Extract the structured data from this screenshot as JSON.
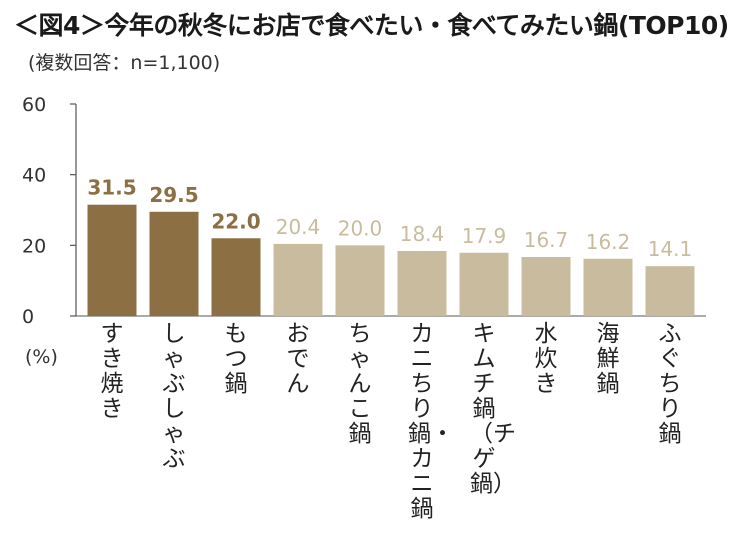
{
  "title": "＜図4＞今年の秋冬にお店で食べたい・食べてみたい鍋(TOP10)",
  "subtitle": "(複数回答：n=1,100)",
  "unit_label": "(%)",
  "colors": {
    "highlight": "#8c7044",
    "normal": "#c9bc9e",
    "axis": "#555555"
  },
  "chart_data": {
    "type": "bar",
    "categories": [
      "すき焼き",
      "しゃぶしゃぶ",
      "もつ鍋",
      "おでん",
      "ちゃんこ鍋",
      "カニちり鍋・カニ鍋",
      "キムチ鍋（チゲ鍋）",
      "水炊き",
      "海鮮鍋",
      "ふぐちり鍋"
    ],
    "values": [
      31.5,
      29.5,
      22.0,
      20.4,
      20.0,
      18.4,
      17.9,
      16.7,
      16.2,
      14.1
    ],
    "value_labels": [
      "31.5",
      "29.5",
      "22.0",
      "20.4",
      "20.0",
      "18.4",
      "17.9",
      "16.7",
      "16.2",
      "14.1"
    ],
    "highlighted": [
      true,
      true,
      true,
      false,
      false,
      false,
      false,
      false,
      false,
      false
    ],
    "yticks": [
      "0",
      "20",
      "40",
      "60"
    ],
    "ylim": [
      0,
      60
    ],
    "grid": false,
    "xlabel": "",
    "ylabel": "(%)"
  }
}
